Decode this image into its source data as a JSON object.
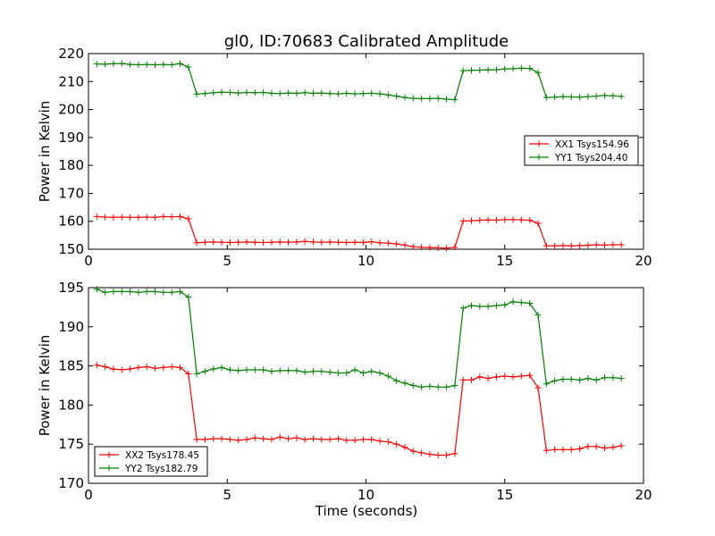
{
  "figure": {
    "title": "gl0, ID:70683 Calibrated Amplitude",
    "xlabel": "Time (seconds)"
  },
  "chart_data": [
    {
      "type": "line",
      "ylabel": "Power in Kelvin",
      "xlim": [
        0,
        20
      ],
      "ylim": [
        150,
        220
      ],
      "xticks": [
        "0",
        "5",
        "10",
        "15",
        "20"
      ],
      "yticks": [
        "150",
        "160",
        "170",
        "180",
        "190",
        "200",
        "210",
        "220"
      ],
      "grid": false,
      "legend_position": "right",
      "x": [
        0.3,
        0.6,
        0.9,
        1.2,
        1.5,
        1.8,
        2.1,
        2.4,
        2.7,
        3.0,
        3.3,
        3.6,
        3.9,
        4.2,
        4.5,
        4.8,
        5.1,
        5.4,
        5.7,
        6.0,
        6.3,
        6.6,
        6.9,
        7.2,
        7.5,
        7.8,
        8.1,
        8.4,
        8.7,
        9.0,
        9.3,
        9.6,
        9.9,
        10.2,
        10.5,
        10.8,
        11.1,
        11.4,
        11.7,
        12.0,
        12.3,
        12.6,
        12.9,
        13.2,
        13.5,
        13.8,
        14.1,
        14.4,
        14.7,
        15.0,
        15.3,
        15.6,
        15.9,
        16.2,
        16.5,
        16.8,
        17.1,
        17.4,
        17.7,
        18.0,
        18.3,
        18.6,
        18.9,
        19.2
      ],
      "series": [
        {
          "name": "XX1 Tsys154.96",
          "color": "#ff0000",
          "values": [
            161.7,
            161.5,
            161.4,
            161.5,
            161.4,
            161.4,
            161.5,
            161.4,
            161.7,
            161.6,
            161.7,
            160.9,
            152.3,
            152.5,
            152.6,
            152.5,
            152.4,
            152.5,
            152.6,
            152.5,
            152.4,
            152.5,
            152.6,
            152.5,
            152.6,
            152.8,
            152.6,
            152.5,
            152.6,
            152.5,
            152.4,
            152.5,
            152.4,
            152.7,
            152.3,
            152.2,
            151.9,
            151.5,
            150.9,
            150.7,
            150.6,
            150.5,
            150.4,
            150.7,
            160.1,
            160.2,
            160.4,
            160.5,
            160.4,
            160.6,
            160.6,
            160.5,
            160.4,
            159.3,
            151.2,
            151.2,
            151.3,
            151.2,
            151.3,
            151.4,
            151.6,
            151.5,
            151.6,
            151.6
          ]
        },
        {
          "name": "YY1 Tsys204.40",
          "color": "#008000",
          "values": [
            216.3,
            216.2,
            216.4,
            216.5,
            216.1,
            216.0,
            216.1,
            216.0,
            216.1,
            216.0,
            216.4,
            215.2,
            205.5,
            205.7,
            206.0,
            206.2,
            206.1,
            205.9,
            206.1,
            206.0,
            206.1,
            205.8,
            205.7,
            205.9,
            205.8,
            206.0,
            205.8,
            205.9,
            205.7,
            205.6,
            205.8,
            205.6,
            205.7,
            205.8,
            205.6,
            205.2,
            204.8,
            204.3,
            204.0,
            203.9,
            203.9,
            204.0,
            203.7,
            203.5,
            213.9,
            214.0,
            214.1,
            214.2,
            214.2,
            214.5,
            214.6,
            214.8,
            214.7,
            213.2,
            204.3,
            204.4,
            204.6,
            204.5,
            204.4,
            204.6,
            204.8,
            205.0,
            204.9,
            204.7
          ]
        }
      ]
    },
    {
      "type": "line",
      "ylabel": "Power in Kelvin",
      "xlabel": "Time (seconds)",
      "xlim": [
        0,
        20
      ],
      "ylim": [
        170,
        195
      ],
      "xticks": [
        "0",
        "5",
        "10",
        "15",
        "20"
      ],
      "yticks": [
        "170",
        "175",
        "180",
        "185",
        "190",
        "195"
      ],
      "grid": false,
      "legend_position": "lower-left",
      "x": [
        0.3,
        0.6,
        0.9,
        1.2,
        1.5,
        1.8,
        2.1,
        2.4,
        2.7,
        3.0,
        3.3,
        3.6,
        3.9,
        4.2,
        4.5,
        4.8,
        5.1,
        5.4,
        5.7,
        6.0,
        6.3,
        6.6,
        6.9,
        7.2,
        7.5,
        7.8,
        8.1,
        8.4,
        8.7,
        9.0,
        9.3,
        9.6,
        9.9,
        10.2,
        10.5,
        10.8,
        11.1,
        11.4,
        11.7,
        12.0,
        12.3,
        12.6,
        12.9,
        13.2,
        13.5,
        13.8,
        14.1,
        14.4,
        14.7,
        15.0,
        15.3,
        15.6,
        15.9,
        16.2,
        16.5,
        16.8,
        17.1,
        17.4,
        17.7,
        18.0,
        18.3,
        18.6,
        18.9,
        19.2
      ],
      "series": [
        {
          "name": "XX2 Tsys178.45",
          "color": "#ff0000",
          "values": [
            185.1,
            184.9,
            184.6,
            184.5,
            184.6,
            184.8,
            184.9,
            184.7,
            184.8,
            184.9,
            184.8,
            184.0,
            175.6,
            175.6,
            175.7,
            175.7,
            175.6,
            175.5,
            175.6,
            175.8,
            175.7,
            175.6,
            175.9,
            175.7,
            175.8,
            175.6,
            175.7,
            175.6,
            175.6,
            175.7,
            175.5,
            175.5,
            175.6,
            175.6,
            175.4,
            175.3,
            175.0,
            174.6,
            174.1,
            173.9,
            173.7,
            173.6,
            173.6,
            173.8,
            183.2,
            183.2,
            183.6,
            183.4,
            183.6,
            183.7,
            183.6,
            183.7,
            183.8,
            182.2,
            174.2,
            174.3,
            174.3,
            174.3,
            174.4,
            174.7,
            174.7,
            174.5,
            174.6,
            174.8
          ]
        },
        {
          "name": "YY2 Tsys182.79",
          "color": "#008000",
          "values": [
            194.8,
            194.4,
            194.5,
            194.5,
            194.5,
            194.4,
            194.5,
            194.5,
            194.4,
            194.4,
            194.5,
            193.8,
            184.0,
            184.3,
            184.6,
            184.8,
            184.5,
            184.4,
            184.5,
            184.5,
            184.5,
            184.3,
            184.4,
            184.4,
            184.4,
            184.2,
            184.3,
            184.3,
            184.2,
            184.1,
            184.1,
            184.5,
            184.1,
            184.3,
            184.1,
            183.7,
            183.1,
            182.8,
            182.5,
            182.3,
            182.4,
            182.3,
            182.3,
            182.5,
            192.4,
            192.7,
            192.6,
            192.6,
            192.7,
            192.8,
            193.2,
            193.1,
            193.0,
            191.5,
            182.7,
            183.1,
            183.3,
            183.3,
            183.2,
            183.4,
            183.2,
            183.5,
            183.5,
            183.4
          ]
        }
      ]
    }
  ]
}
